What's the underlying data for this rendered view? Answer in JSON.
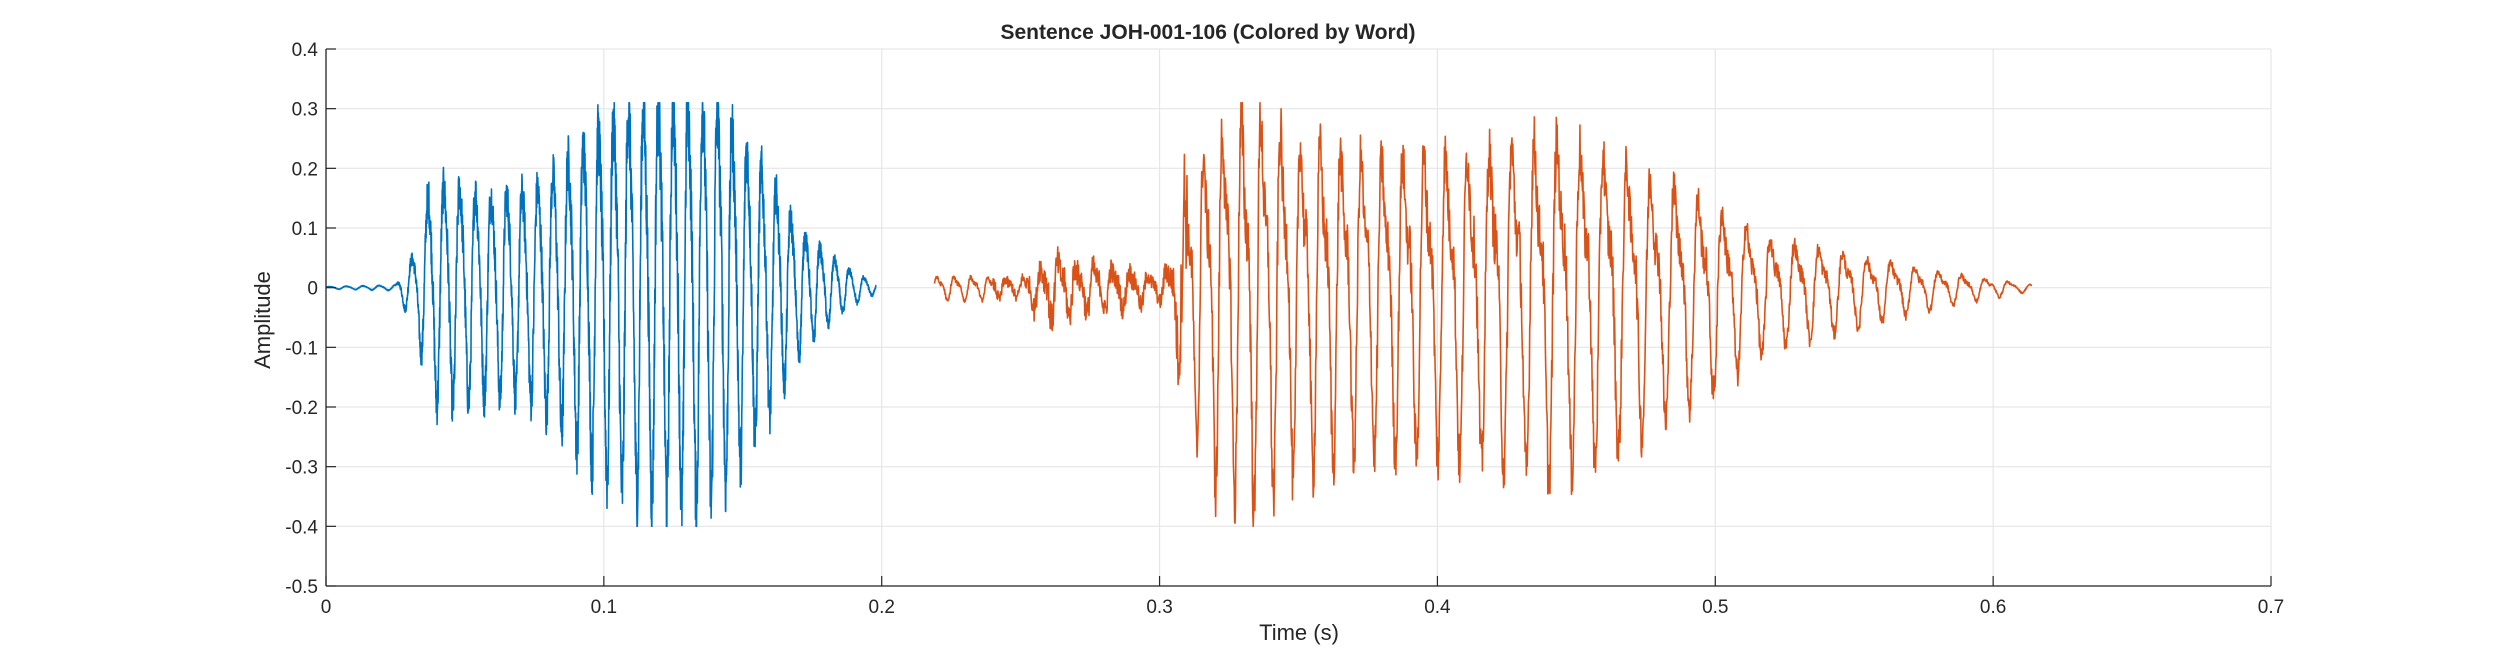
{
  "chart_data": {
    "type": "line",
    "title": "Sentence JOH-001-106 (Colored by Word)",
    "xlabel": "Time (s)",
    "ylabel": "Amplitude",
    "xlim": [
      0,
      0.7
    ],
    "ylim": [
      -0.5,
      0.4
    ],
    "xticks": [
      "0",
      "0.1",
      "0.2",
      "0.3",
      "0.4",
      "0.5",
      "0.6",
      "0.7"
    ],
    "yticks": [
      "0.4",
      "0.3",
      "0.2",
      "0.1",
      "0",
      "-0.1",
      "-0.2",
      "-0.3",
      "-0.4",
      "-0.5"
    ],
    "grid": true,
    "series": [
      {
        "color": "#0072BD",
        "t_start": 0.0,
        "t_end": 0.198,
        "envelope": [
          [
            0.0,
            0.002
          ],
          [
            0.025,
            0.005
          ],
          [
            0.033,
            0.08
          ],
          [
            0.037,
            0.2
          ],
          [
            0.045,
            0.21
          ],
          [
            0.06,
            0.19
          ],
          [
            0.075,
            0.2
          ],
          [
            0.09,
            0.28
          ],
          [
            0.1,
            0.33
          ],
          [
            0.11,
            0.37
          ],
          [
            0.12,
            0.37
          ],
          [
            0.13,
            0.38
          ],
          [
            0.14,
            0.37
          ],
          [
            0.15,
            0.3
          ],
          [
            0.16,
            0.22
          ],
          [
            0.17,
            0.12
          ],
          [
            0.18,
            0.07
          ],
          [
            0.19,
            0.03
          ],
          [
            0.198,
            0.01
          ]
        ]
      },
      {
        "color": "#D95319",
        "t_start": 0.219,
        "t_end": 0.614,
        "envelope": [
          [
            0.219,
            0.02
          ],
          [
            0.23,
            0.02
          ],
          [
            0.25,
            0.015
          ],
          [
            0.26,
            0.05
          ],
          [
            0.27,
            0.04
          ],
          [
            0.29,
            0.03
          ],
          [
            0.3,
            0.02
          ],
          [
            0.305,
            0.05
          ],
          [
            0.31,
            0.2
          ],
          [
            0.32,
            0.29
          ],
          [
            0.335,
            0.33
          ],
          [
            0.345,
            0.29
          ],
          [
            0.36,
            0.26
          ],
          [
            0.38,
            0.24
          ],
          [
            0.4,
            0.25
          ],
          [
            0.42,
            0.26
          ],
          [
            0.44,
            0.28
          ],
          [
            0.46,
            0.25
          ],
          [
            0.48,
            0.2
          ],
          [
            0.5,
            0.15
          ],
          [
            0.52,
            0.09
          ],
          [
            0.55,
            0.06
          ],
          [
            0.58,
            0.03
          ],
          [
            0.6,
            0.015
          ],
          [
            0.614,
            0.005
          ]
        ]
      }
    ]
  }
}
